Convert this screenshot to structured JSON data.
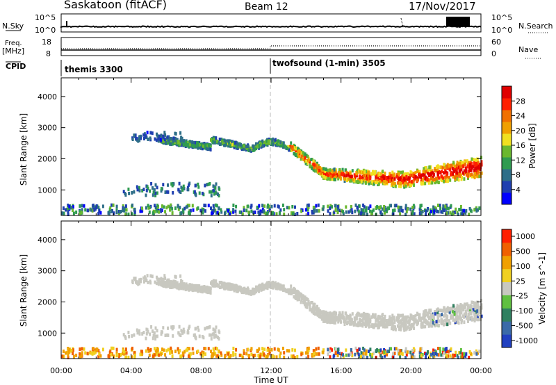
{
  "header": {
    "station": "Saskatoon (fitACF)",
    "beam": "Beam 12",
    "date": "17/Nov/2017"
  },
  "sky_panel": {
    "left_label": "N.Sky",
    "right_label": "N.Search",
    "left_ticks": [
      "10^5",
      "10^0"
    ],
    "right_ticks": [
      "10^5",
      "10^0"
    ]
  },
  "freq_panel": {
    "left_label_1": "Freq.",
    "left_label_2": "[MHz]",
    "right_label": "Nave",
    "left_ticks": [
      "18",
      "8"
    ],
    "right_ticks": [
      "60",
      "0"
    ]
  },
  "cpid": {
    "label": "CPID",
    "segments": [
      {
        "name": "themis 3300",
        "start_h": 0
      },
      {
        "name": "twofsound (1-min) 3505",
        "start_h": 12
      }
    ]
  },
  "chart_data": [
    {
      "type": "heatmap",
      "panel": "power",
      "ylabel": "Slant Range [km]",
      "ylim": [
        180,
        4600
      ],
      "yticks": [
        1000,
        2000,
        3000,
        4000
      ],
      "colorbar": {
        "label": "Power [dB]",
        "range": [
          0,
          32
        ],
        "ticks": [
          "4",
          "8",
          "12",
          "16",
          "20",
          "24",
          "28"
        ],
        "colors": [
          "#0000ff",
          "#1f3fb0",
          "#2e6e88",
          "#2f9b50",
          "#6ab82f",
          "#f0e020",
          "#f0a000",
          "#f07000",
          "#ff2000",
          "#e00000"
        ]
      }
    },
    {
      "type": "heatmap",
      "panel": "velocity",
      "ylabel": "Slant Range [km]",
      "ylim": [
        180,
        4600
      ],
      "yticks": [
        1000,
        2000,
        3000,
        4000
      ],
      "colorbar": {
        "label": "Velocity [m s^-1]",
        "ticks": [
          "1000",
          "500",
          "100",
          "25",
          "-25",
          "-100",
          "-500",
          "-1000"
        ],
        "colors": [
          "#2040c0",
          "#3a6aa8",
          "#2f8060",
          "#60c040",
          "#c8c8c0",
          "#f0d020",
          "#f0a000",
          "#f06000",
          "#ff2000"
        ]
      }
    }
  ],
  "time_axis": {
    "xlabel": "Time UT",
    "ticks": [
      "00:00",
      "04:00",
      "08:00",
      "12:00",
      "16:00",
      "20:00",
      "00:00"
    ]
  }
}
